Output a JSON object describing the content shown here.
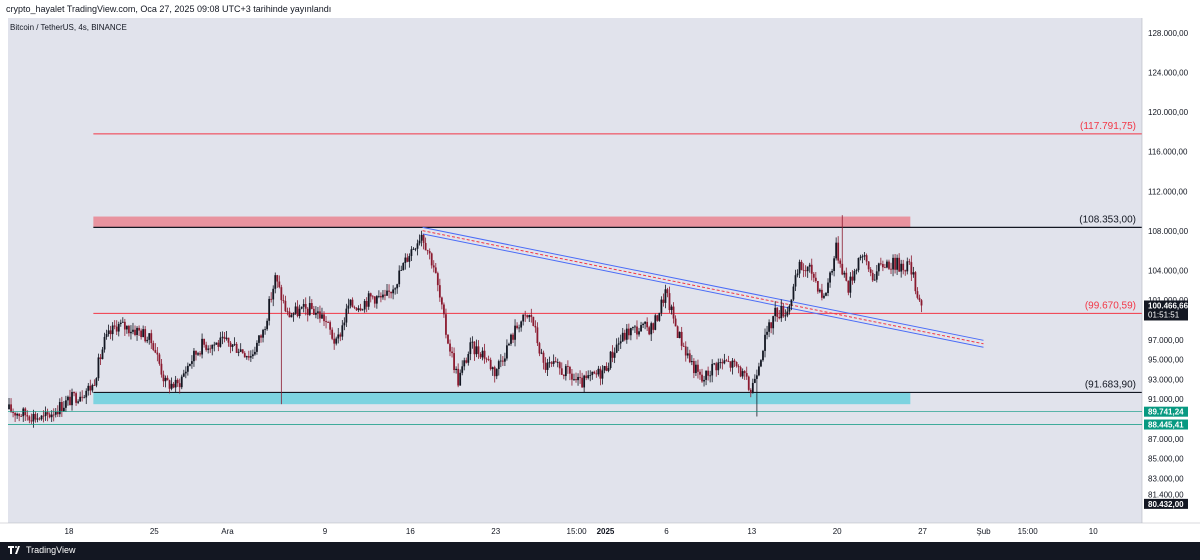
{
  "header": {
    "publish_info": "crypto_hayalet TradingView.com, Oca 27, 2025 09:08 UTC+3 tarihinde yayınlandı"
  },
  "chart": {
    "symbol_info": "Bitcoin / TetherUS, 4s, BINANCE"
  },
  "footer": {
    "brand": "TradingView"
  },
  "colors": {
    "background": "#e1e3ec",
    "resistance_zone": "#e8939f",
    "support_zone": "#7dd3e0",
    "level_red": "#f23645",
    "level_black": "#131722",
    "trend_blue": "#4a6cf7",
    "up_candle": "#131722",
    "down_candle": "#8b1a2f",
    "last_price": "#131722",
    "green_marker": "#089981"
  },
  "chart_data": {
    "type": "candlestick",
    "y_axis_labels": [
      "128.000,00",
      "124.000,00",
      "120.000,00",
      "116.000,00",
      "112.000,00",
      "108.000,00",
      "104.000,00",
      "101.000,00",
      "97.000,00",
      "95.000,00",
      "93.000,00",
      "91.000,00",
      "87.000,00",
      "85.000,00",
      "83.000,00",
      "81.400,00"
    ],
    "y_axis_label_values": [
      128000,
      124000,
      120000,
      116000,
      112000,
      108000,
      104000,
      101000,
      97000,
      95000,
      93000,
      91000,
      87000,
      85000,
      83000,
      81400
    ],
    "x_axis_labels": [
      "18",
      "25",
      "Ara",
      "9",
      "16",
      "23",
      "15:00",
      "2025",
      "6",
      "13",
      "20",
      "27",
      "Şub",
      "15:00",
      "10"
    ],
    "x_axis_label_dates": [
      "2024-11-18",
      "2024-11-25",
      "2024-12-01",
      "2024-12-09",
      "2024-12-16",
      "2024-12-23",
      "2024-12-29T15:00",
      "2025-01-01",
      "2025-01-06",
      "2025-01-13",
      "2025-01-20",
      "2025-01-27",
      "2025-02-01",
      "2025-02-04T15:00",
      "2025-02-10"
    ],
    "y_range": [
      78500,
      129500
    ],
    "x_range": [
      "2024-11-13",
      "2025-02-14"
    ],
    "levels": [
      {
        "label": "(117.791,75)",
        "value": 117791.75,
        "color": "#f23645"
      },
      {
        "label": "(108.353,00)",
        "value": 108353.0,
        "color": "#131722"
      },
      {
        "label": "(99.670,59)",
        "value": 99670.59,
        "color": "#f23645"
      },
      {
        "label": "(91.683,90)",
        "value": 91683.9,
        "color": "#131722"
      }
    ],
    "zones": [
      {
        "name": "resistance",
        "from": 108353,
        "to": 109450,
        "start": "2024-11-20",
        "end": "2025-01-26"
      },
      {
        "name": "support",
        "from": 90500,
        "to": 91683.9,
        "start": "2024-11-20",
        "end": "2025-01-26"
      }
    ],
    "trendline_channel": {
      "start_date": "2024-12-17",
      "end_date": "2025-02-01",
      "upper": [
        108350,
        96950
      ],
      "lower": [
        107700,
        96250
      ]
    },
    "price_markers": [
      {
        "label": "100.466,66",
        "sub": "01:51:51",
        "value": 100466.66,
        "color": "#131722"
      },
      {
        "label": "89.741,24",
        "value": 89741.24,
        "color": "#089981"
      },
      {
        "label": "88.445,41",
        "value": 88445.41,
        "color": "#089981"
      },
      {
        "label": "80.432,00",
        "value": 80432.0,
        "color": "#131722"
      }
    ],
    "price_path": [
      [
        "2024-11-13",
        90000
      ],
      [
        "2024-11-14",
        89600
      ],
      [
        "2024-11-15",
        89400
      ],
      [
        "2024-11-16",
        89000
      ],
      [
        "2024-11-17",
        90000
      ],
      [
        "2024-11-18",
        90800
      ],
      [
        "2024-11-19",
        91600
      ],
      [
        "2024-11-20",
        92300
      ],
      [
        "2024-11-21",
        96800
      ],
      [
        "2024-11-22",
        98500
      ],
      [
        "2024-11-23",
        98200
      ],
      [
        "2024-11-24",
        97800
      ],
      [
        "2024-11-25",
        96600
      ],
      [
        "2024-11-26",
        92600
      ],
      [
        "2024-11-27",
        92400
      ],
      [
        "2024-11-28",
        94800
      ],
      [
        "2024-11-29",
        96500
      ],
      [
        "2024-11-30",
        96600
      ],
      [
        "2024-12-01",
        96700
      ],
      [
        "2024-12-02",
        96200
      ],
      [
        "2024-12-03",
        95400
      ],
      [
        "2024-12-04",
        97800
      ],
      [
        "2024-12-05",
        103200
      ],
      [
        "2024-12-06",
        99500
      ],
      [
        "2024-12-07",
        99900
      ],
      [
        "2024-12-08",
        100100
      ],
      [
        "2024-12-09",
        99200
      ],
      [
        "2024-12-10",
        96500
      ],
      [
        "2024-12-11",
        100400
      ],
      [
        "2024-12-12",
        100600
      ],
      [
        "2024-12-13",
        101400
      ],
      [
        "2024-12-14",
        101000
      ],
      [
        "2024-12-15",
        103200
      ],
      [
        "2024-12-16",
        105800
      ],
      [
        "2024-12-17",
        107800
      ],
      [
        "2024-12-18",
        104500
      ],
      [
        "2024-12-19",
        97800
      ],
      [
        "2024-12-20",
        92900
      ],
      [
        "2024-12-21",
        96200
      ],
      [
        "2024-12-22",
        95800
      ],
      [
        "2024-12-23",
        93800
      ],
      [
        "2024-12-24",
        96200
      ],
      [
        "2024-12-25",
        98800
      ],
      [
        "2024-12-26",
        99400
      ],
      [
        "2024-12-27",
        94400
      ],
      [
        "2024-12-28",
        94200
      ],
      [
        "2024-12-29",
        93600
      ],
      [
        "2024-12-30",
        92500
      ],
      [
        "2024-12-31",
        93200
      ],
      [
        "2025-01-01",
        94000
      ],
      [
        "2025-01-02",
        96500
      ],
      [
        "2025-01-03",
        97900
      ],
      [
        "2025-01-04",
        98100
      ],
      [
        "2025-01-05",
        98300
      ],
      [
        "2025-01-06",
        101800
      ],
      [
        "2025-01-07",
        97800
      ],
      [
        "2025-01-08",
        95000
      ],
      [
        "2025-01-09",
        92800
      ],
      [
        "2025-01-10",
        94500
      ],
      [
        "2025-01-11",
        94700
      ],
      [
        "2025-01-12",
        94200
      ],
      [
        "2025-01-13",
        91800
      ],
      [
        "2025-01-14",
        96400
      ],
      [
        "2025-01-15",
        99800
      ],
      [
        "2025-01-16",
        100000
      ],
      [
        "2025-01-17",
        104300
      ],
      [
        "2025-01-18",
        103900
      ],
      [
        "2025-01-19",
        101200
      ],
      [
        "2025-01-20",
        106200
      ],
      [
        "2025-01-21",
        102300
      ],
      [
        "2025-01-22",
        105800
      ],
      [
        "2025-01-23",
        103400
      ],
      [
        "2025-01-24",
        104800
      ],
      [
        "2025-01-25",
        104600
      ],
      [
        "2025-01-26",
        104500
      ],
      [
        "2025-01-27",
        100466.66
      ]
    ],
    "wick_extremes": [
      {
        "date": "2024-12-05",
        "low": 90500
      },
      {
        "date": "2025-01-13",
        "low": 89256
      },
      {
        "date": "2025-01-20",
        "high": 109588
      },
      {
        "date": "2024-11-14",
        "low": 88800
      }
    ]
  }
}
